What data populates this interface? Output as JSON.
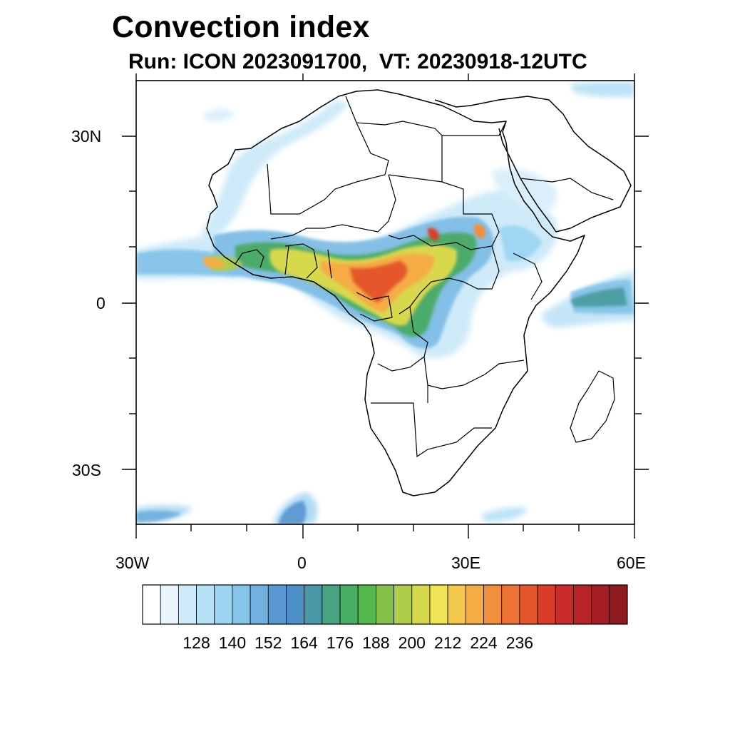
{
  "title": "Convection index",
  "subtitle": "Run: ICON 2023091700,  VT: 20230918-12UTC",
  "map": {
    "lat_labels": [
      "30N",
      "0",
      "30S"
    ],
    "lon_labels": [
      "30W",
      "0",
      "30E",
      "60E"
    ]
  },
  "colorbar": {
    "labels": [
      "128",
      "140",
      "152",
      "164",
      "176",
      "188",
      "200",
      "212",
      "224",
      "236"
    ],
    "colors": [
      "#ffffff",
      "#e9f5fc",
      "#cfeaf8",
      "#b5e0f6",
      "#9dd6f3",
      "#86c4ea",
      "#72b0e0",
      "#5b99d3",
      "#4d8fc8",
      "#4b97a8",
      "#49a383",
      "#47af63",
      "#55b84a",
      "#86c24a",
      "#b0cc4b",
      "#d8d84d",
      "#efe356",
      "#f5c84e",
      "#f6ac45",
      "#f28f3c",
      "#ed7233",
      "#e5562c",
      "#da3c29",
      "#cb2b2b",
      "#b82328",
      "#a41d24",
      "#8e1a1f"
    ]
  }
}
